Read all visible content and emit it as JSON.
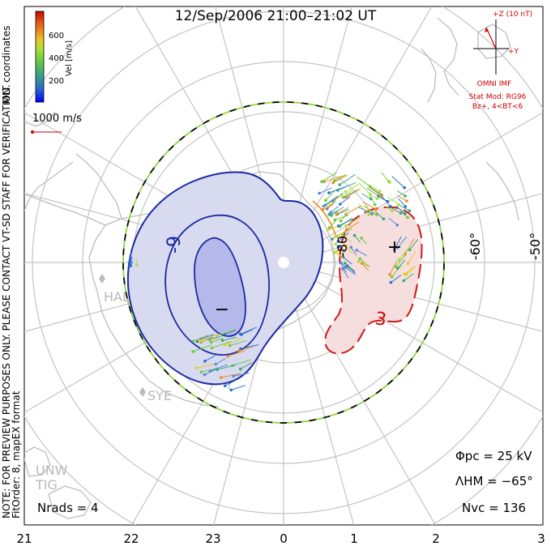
{
  "title": "12/Sep/2006 21:00–21:02 UT",
  "colorbar": {
    "label": "Vel [m/s]",
    "ticks": [
      "600",
      "400",
      "200"
    ],
    "colors": [
      "#0000ff",
      "#2a72c8",
      "#3ca87a",
      "#6ccc3c",
      "#a8e03a",
      "#e6c82a",
      "#f08a1e",
      "#e04a14",
      "#c80000"
    ]
  },
  "side_note": {
    "coords": "MLT coordinates",
    "preview": "NOTE: FOR PREVIEW PURPOSES ONLY. PLEASE CONTACT VT-SD STAFF FOR VERIFICATION.",
    "fit": "FitOrder: 8, mapEX format"
  },
  "velocity_scale": "1000 m/s",
  "imf": {
    "z_label": "+Z (10 nT)",
    "y_label": "+Y",
    "source": "OMNI IMF",
    "model": "Stat Mod: RG96",
    "condition": "Bz+, 4<BT<6"
  },
  "latitude_labels": [
    "-50°",
    "-60°",
    "-80"
  ],
  "contour_labels": [
    "-9",
    "3"
  ],
  "potential_markers": [
    "−",
    "+"
  ],
  "stations": [
    "HAL",
    "SYE",
    "UNW",
    "TIG"
  ],
  "mlt_labels": [
    "21",
    "22",
    "23",
    "0",
    "1",
    "2",
    "3"
  ],
  "stats": {
    "phi_pc": "Φpc  =  25 kV",
    "lambda_hm": "ΛHM  =  −65°",
    "n_vc": "Nvc  =  136",
    "n_rads": "Nrads  =  4"
  },
  "colors": {
    "negative_contour": "#1c2aa0",
    "negative_fill": "#d8daf0",
    "negative_core": "#b5b8ea",
    "positive_contour": "#cc1a1a",
    "positive_fill": "#f7dede",
    "map_lines": "#c2c2c2",
    "boundary_dash_a": "#000000",
    "boundary_dash_b": "#8ed640"
  }
}
